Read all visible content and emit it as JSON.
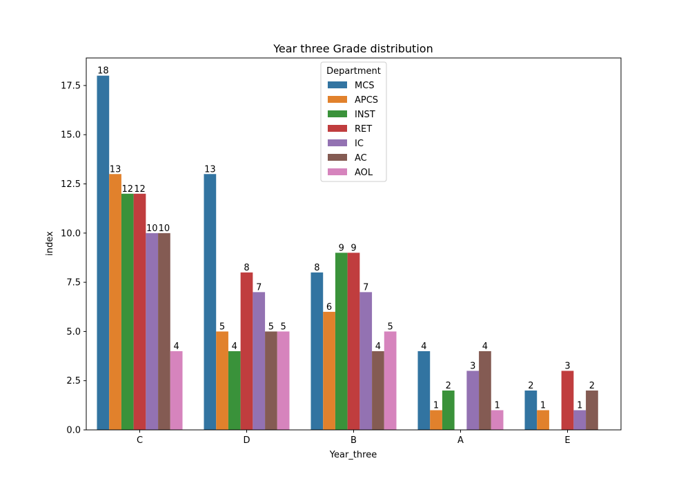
{
  "chart_data": {
    "type": "bar",
    "title": "Year three Grade distribution",
    "xlabel": "Year_three",
    "ylabel": "index",
    "categories": [
      "C",
      "D",
      "B",
      "A",
      "E"
    ],
    "ylim": [
      0,
      18.9
    ],
    "yticks": [
      0.0,
      2.5,
      5.0,
      7.5,
      10.0,
      12.5,
      15.0,
      17.5
    ],
    "ytick_labels": [
      "0.0",
      "2.5",
      "5.0",
      "7.5",
      "10.0",
      "12.5",
      "15.0",
      "17.5"
    ],
    "grid": false,
    "legend": {
      "title": "Department",
      "placement": "upper-center"
    },
    "series": [
      {
        "name": "MCS",
        "color": "#3274a1",
        "values": [
          18,
          13,
          8,
          4,
          2
        ]
      },
      {
        "name": "APCS",
        "color": "#e1812c",
        "values": [
          13,
          5,
          6,
          1,
          1
        ]
      },
      {
        "name": "INST",
        "color": "#3a923a",
        "values": [
          12,
          4,
          9,
          2,
          null
        ]
      },
      {
        "name": "RET",
        "color": "#c03d3e",
        "values": [
          12,
          8,
          9,
          null,
          3
        ]
      },
      {
        "name": "IC",
        "color": "#9372b2",
        "values": [
          10,
          7,
          7,
          3,
          1
        ]
      },
      {
        "name": "AC",
        "color": "#845b53",
        "values": [
          10,
          5,
          4,
          4,
          2
        ]
      },
      {
        "name": "AOL",
        "color": "#d684bd",
        "values": [
          4,
          5,
          5,
          1,
          null
        ]
      }
    ]
  }
}
